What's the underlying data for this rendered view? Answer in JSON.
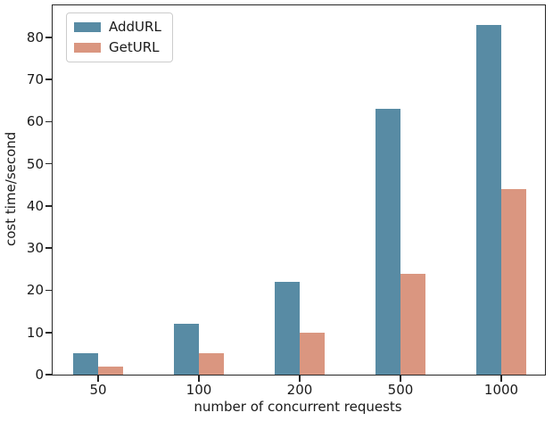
{
  "figure": {
    "background": "#ffffff",
    "frame_color": "#262626",
    "text_color": "#1a1a1a"
  },
  "chart_data": {
    "type": "bar",
    "title": "",
    "xlabel": "number of concurrent requests",
    "ylabel": "cost time/second",
    "categories": [
      "50",
      "100",
      "200",
      "500",
      "1000"
    ],
    "series": [
      {
        "name": "AddURL",
        "color": "#588BA4",
        "values": [
          5,
          12,
          22,
          63,
          83
        ]
      },
      {
        "name": "GetURL",
        "color": "#DA9680",
        "values": [
          2,
          5,
          10,
          24,
          44
        ]
      }
    ],
    "yticks": [
      0,
      10,
      20,
      30,
      40,
      50,
      60,
      70,
      80
    ],
    "ylim": [
      0,
      87.6
    ],
    "grid": false,
    "legend_position": "upper-left"
  }
}
